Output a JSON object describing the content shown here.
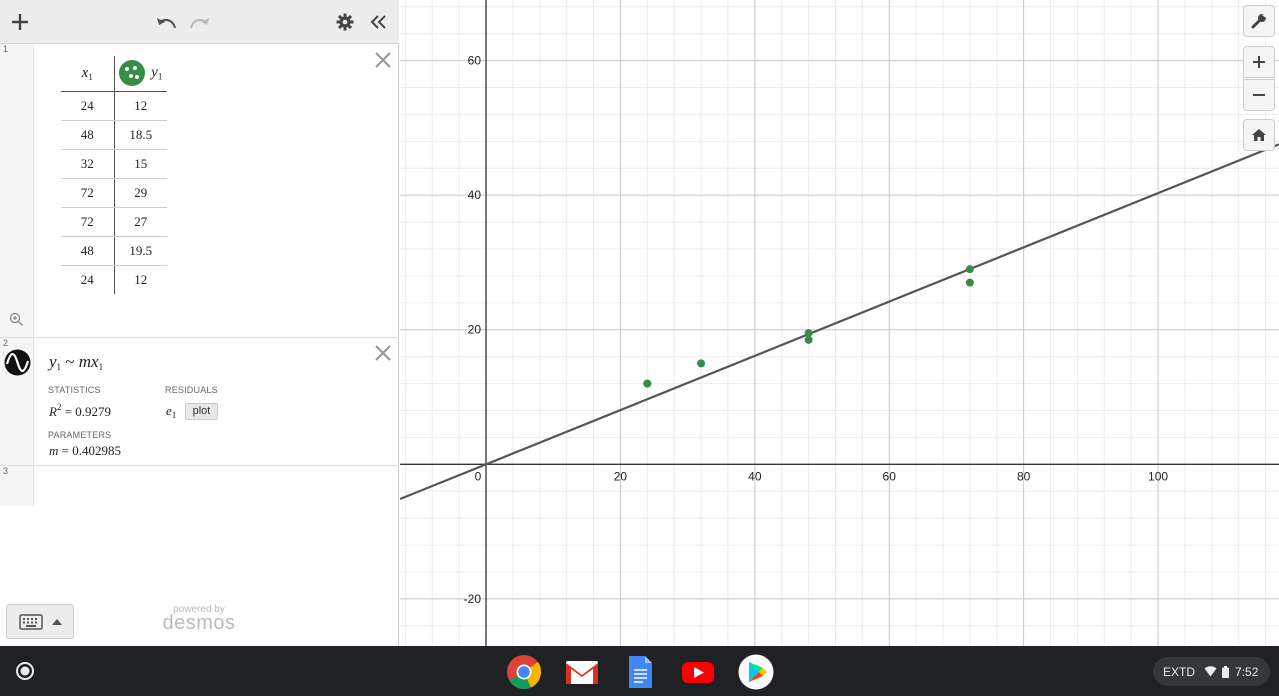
{
  "panel": {
    "rows": [
      {
        "num": "1",
        "kind": "table"
      },
      {
        "num": "2",
        "kind": "regression"
      },
      {
        "num": "3",
        "kind": "empty"
      }
    ],
    "table": {
      "col1_header": "x",
      "col1_sub": "1",
      "col2_header": "y",
      "col2_sub": "1",
      "point_color": "#388c46",
      "rows": [
        [
          "24",
          "12"
        ],
        [
          "48",
          "18.5"
        ],
        [
          "32",
          "15"
        ],
        [
          "72",
          "29"
        ],
        [
          "72",
          "27"
        ],
        [
          "48",
          "19.5"
        ],
        [
          "24",
          "12"
        ]
      ]
    },
    "regression": {
      "expr_y": "y",
      "expr_y_sub": "1",
      "expr_op": "~",
      "expr_m": "m",
      "expr_x": "x",
      "expr_x_sub": "1",
      "statistics_label": "STATISTICS",
      "residuals_label": "RESIDUALS",
      "r2_lhs": "R",
      "r2_sup": "2",
      "r2_value": "= 0.9279",
      "resid_var": "e",
      "resid_sub": "1",
      "plot_label": "plot",
      "parameters_label": "PARAMETERS",
      "m_lhs": "m",
      "m_value": "= 0.402985"
    },
    "powered_by": "powered by",
    "brand": "desmos"
  },
  "graph": {
    "x_ticks": [
      "0",
      "20",
      "40",
      "60",
      "80",
      "100"
    ],
    "y_ticks": [
      "60",
      "40",
      "20",
      "-20"
    ],
    "line_color": "#555555",
    "point_color": "#388c46"
  },
  "chart_data": {
    "type": "scatter",
    "points": [
      {
        "x": 24,
        "y": 12
      },
      {
        "x": 48,
        "y": 18.5
      },
      {
        "x": 32,
        "y": 15
      },
      {
        "x": 72,
        "y": 29
      },
      {
        "x": 72,
        "y": 27
      },
      {
        "x": 48,
        "y": 19.5
      },
      {
        "x": 24,
        "y": 12
      }
    ],
    "fit_line": {
      "slope": 0.402985,
      "intercept": 0
    },
    "xlim": [
      -12.8,
      118
    ],
    "ylim": [
      -27,
      69
    ],
    "grid": true,
    "x_tick_values": [
      0,
      20,
      40,
      60,
      80,
      100
    ],
    "y_tick_values": [
      60,
      40,
      20,
      -20
    ]
  },
  "taskbar": {
    "apps": [
      "chrome-icon",
      "gmail-icon",
      "docs-icon",
      "youtube-icon",
      "play-store-icon"
    ],
    "status_text": "EXTD",
    "time": "7:52"
  }
}
